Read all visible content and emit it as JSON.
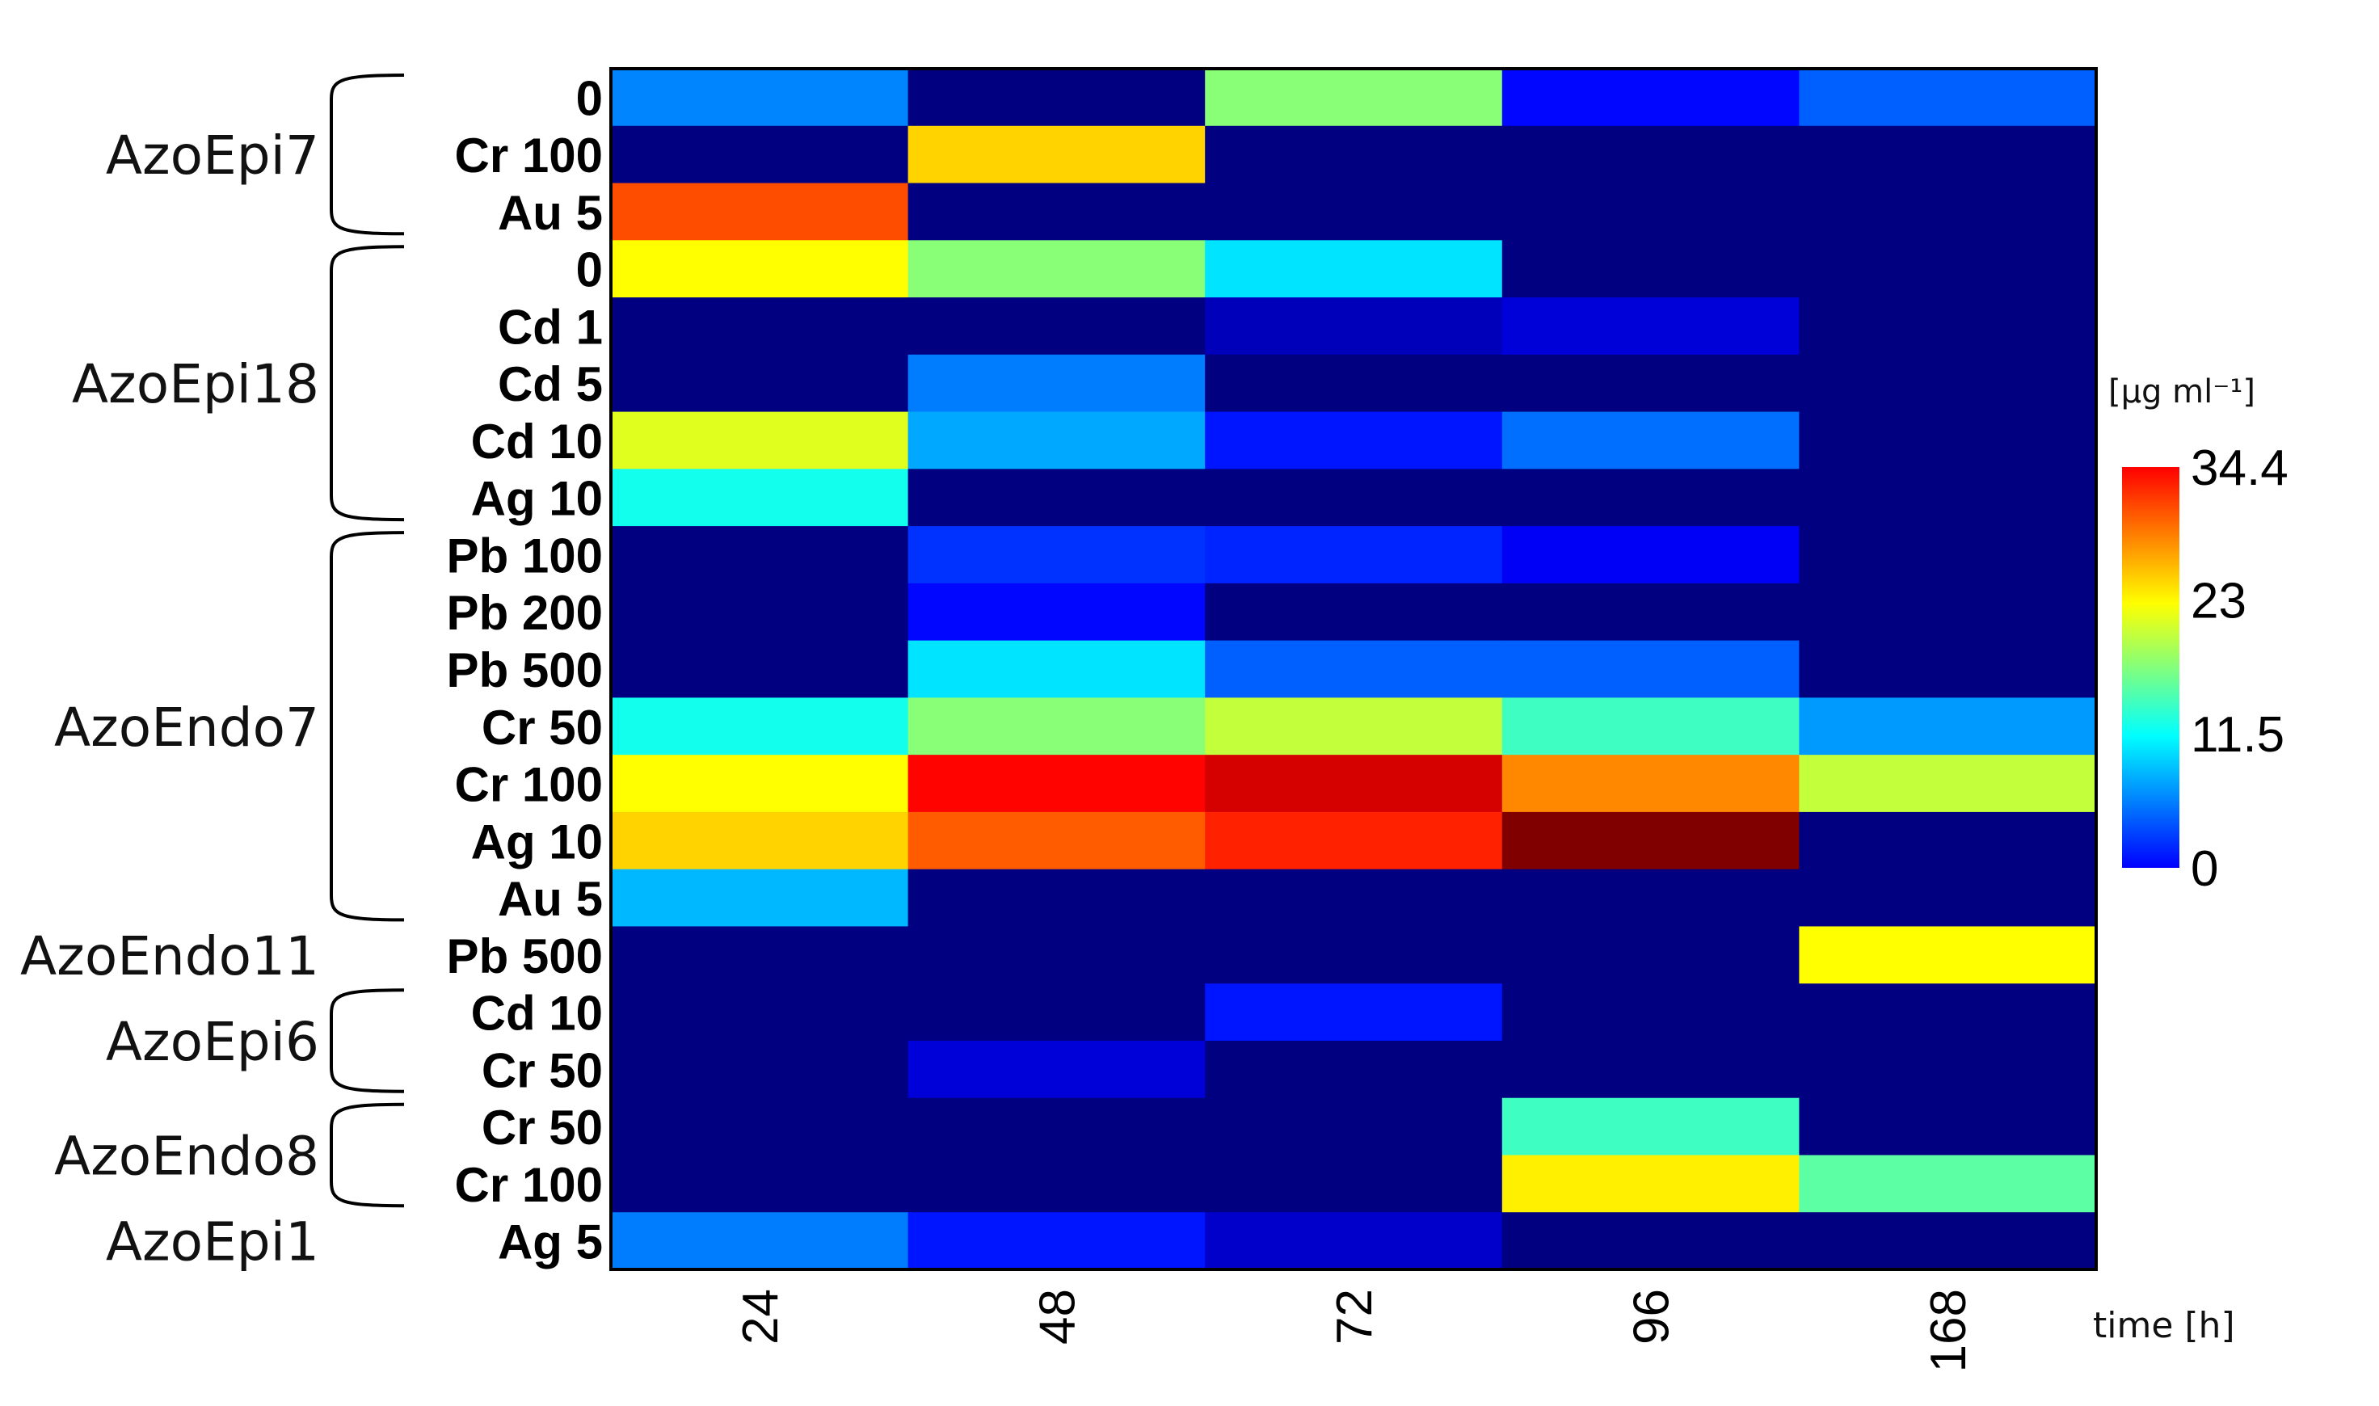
{
  "chart_data": {
    "type": "heatmap",
    "title": "",
    "xlabel": "time [h]",
    "x": [
      "24",
      "48",
      "72",
      "96",
      "168"
    ],
    "rows": [
      "0",
      "Cr 100",
      "Au 5",
      "0",
      "Cd 1",
      "Cd 5",
      "Cd 10",
      "Ag 10",
      "Pb 100",
      "Pb 200",
      "Pb 500",
      "Cr 50",
      "Cr 100",
      "Ag 10",
      "Au 5",
      "Pb 500",
      "Cd 10",
      "Cr 50",
      "Cr 50",
      "Cr 100",
      "Ag 5"
    ],
    "groups": [
      {
        "name": "AzoEpi7",
        "rows": [
          0,
          2
        ]
      },
      {
        "name": "AzoEpi18",
        "rows": [
          3,
          7
        ]
      },
      {
        "name": "AzoEndo7",
        "rows": [
          8,
          14
        ]
      },
      {
        "name": "AzoEndo11",
        "rows": [
          15,
          15
        ]
      },
      {
        "name": "AzoEpi6",
        "rows": [
          16,
          17
        ]
      },
      {
        "name": "AzoEndo8",
        "rows": [
          18,
          19
        ]
      },
      {
        "name": "AzoEpi1",
        "rows": [
          20,
          20
        ]
      }
    ],
    "values": [
      [
        8.8,
        0,
        17.5,
        4.5,
        7.5
      ],
      [
        0,
        23,
        0,
        0,
        0
      ],
      [
        27.5,
        0,
        0,
        0,
        0
      ],
      [
        21.5,
        17.5,
        12,
        0,
        0
      ],
      [
        0,
        0,
        2,
        3,
        0
      ],
      [
        0,
        8.5,
        0,
        0,
        0
      ],
      [
        20.5,
        10,
        5,
        8,
        0
      ],
      [
        13.5,
        0,
        0,
        0,
        0
      ],
      [
        0,
        6,
        5.5,
        4,
        0
      ],
      [
        0,
        4.5,
        0,
        0,
        0
      ],
      [
        0,
        12,
        7.5,
        7.5,
        0
      ],
      [
        13.5,
        17.5,
        19.5,
        15,
        9.5
      ],
      [
        21.5,
        30,
        31.5,
        25.5,
        19.5
      ],
      [
        23,
        27,
        29,
        34.4,
        0
      ],
      [
        10.5,
        0,
        0,
        0,
        0
      ],
      [
        0,
        0,
        0,
        0,
        21.5
      ],
      [
        0,
        0,
        5,
        0,
        0
      ],
      [
        0,
        3,
        0,
        0,
        0
      ],
      [
        0,
        0,
        0,
        15,
        0
      ],
      [
        0,
        0,
        0,
        22,
        16
      ],
      [
        8.5,
        5,
        2.5,
        0,
        0
      ]
    ],
    "colorbar": {
      "unit": "[µg ml⁻¹]",
      "min": 0,
      "max": 34.4,
      "ticks": [
        "34.4",
        "23",
        "11.5",
        "0"
      ],
      "colormap": "jet"
    },
    "grid": false
  }
}
